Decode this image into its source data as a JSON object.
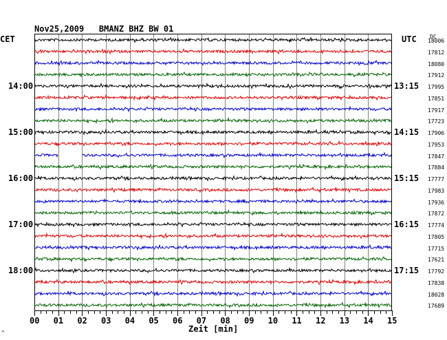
{
  "header": {
    "title": "Nov25,2009   BMANZ BHZ BW 01",
    "left_tz": "CET",
    "right_tz": "UTC",
    "dc_label": "DC"
  },
  "footer": {
    "xlabel": "Zeit [min]",
    "corner_mark": "^"
  },
  "colors": {
    "trace_cycle": [
      "#000000",
      "#e00000",
      "#0000d0",
      "#006400"
    ],
    "grid": "#808080",
    "frame": "#000000"
  },
  "chart_data": {
    "type": "line",
    "title": "Nov25,2009   BMANZ BHZ BW 01",
    "xlabel": "Zeit [min]",
    "ylabel": "",
    "xlim": [
      0,
      15
    ],
    "x_ticks": [
      "00",
      "01",
      "02",
      "03",
      "04",
      "05",
      "06",
      "07",
      "08",
      "09",
      "10",
      "11",
      "12",
      "13",
      "14",
      "15"
    ],
    "grid": true,
    "rows": 24,
    "left_time_labels": [
      {
        "row": 4,
        "text": "14:00"
      },
      {
        "row": 8,
        "text": "15:00"
      },
      {
        "row": 12,
        "text": "16:00"
      },
      {
        "row": 16,
        "text": "17:00"
      },
      {
        "row": 20,
        "text": "18:00"
      }
    ],
    "right_time_labels": [
      {
        "row": 4,
        "text": "13:15"
      },
      {
        "row": 8,
        "text": "14:15"
      },
      {
        "row": 12,
        "text": "15:15"
      },
      {
        "row": 16,
        "text": "16:15"
      },
      {
        "row": 20,
        "text": "17:15"
      }
    ],
    "dc_offsets": [
      18006,
      17812,
      18080,
      17912,
      17995,
      17851,
      17917,
      17723,
      17906,
      17953,
      17847,
      17884,
      17777,
      17983,
      17936,
      17872,
      17774,
      17805,
      17715,
      17621,
      17792,
      17838,
      18028,
      17689
    ],
    "gaps": [
      {
        "row": 10,
        "from_min": 1.0,
        "to_min": 2.0
      }
    ]
  }
}
